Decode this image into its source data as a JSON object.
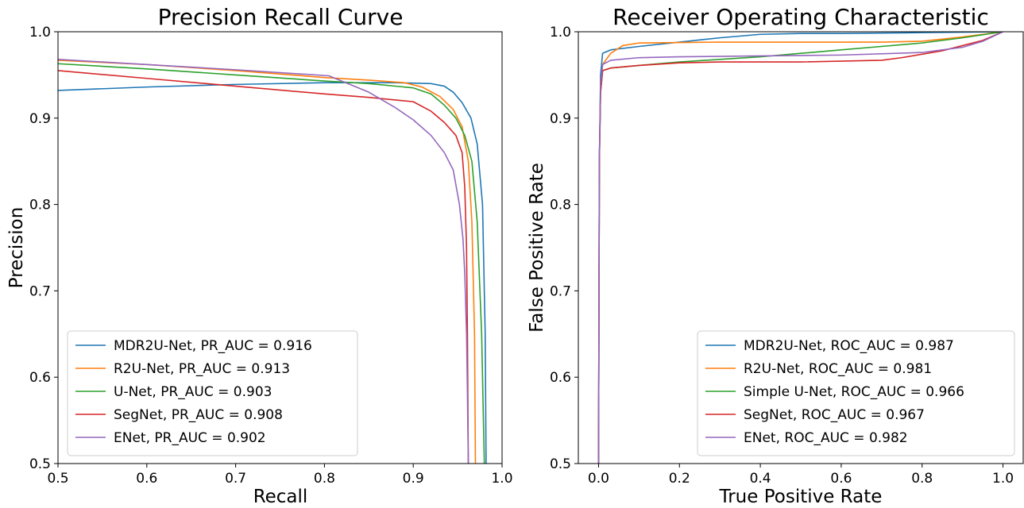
{
  "chart_data": [
    {
      "type": "line",
      "title": "Precision Recall Curve",
      "xlabel": "Recall",
      "ylabel": "Precision",
      "xlim": [
        0.5,
        1.0
      ],
      "ylim": [
        0.5,
        1.0
      ],
      "xticks": [
        "0.5",
        "0.6",
        "0.7",
        "0.8",
        "0.9",
        "1.0"
      ],
      "yticks": [
        "0.5",
        "0.6",
        "0.7",
        "0.8",
        "0.9",
        "1.0"
      ],
      "grid": false,
      "legend_position": "lower-left",
      "series": [
        {
          "name": "MDR2U-Net, PR_AUC = 0.916",
          "color": "#1f77b4",
          "x": [
            0.5,
            0.6,
            0.7,
            0.8,
            0.88,
            0.92,
            0.935,
            0.945,
            0.955,
            0.965,
            0.972,
            0.978,
            0.981,
            0.982
          ],
          "y": [
            0.932,
            0.936,
            0.939,
            0.941,
            0.941,
            0.94,
            0.937,
            0.93,
            0.918,
            0.9,
            0.87,
            0.8,
            0.65,
            0.5
          ]
        },
        {
          "name": "R2U-Net, PR_AUC = 0.913",
          "color": "#ff7f0e",
          "x": [
            0.5,
            0.6,
            0.7,
            0.8,
            0.85,
            0.89,
            0.91,
            0.93,
            0.945,
            0.955,
            0.962,
            0.966,
            0.969,
            0.97
          ],
          "y": [
            0.967,
            0.962,
            0.955,
            0.947,
            0.944,
            0.941,
            0.936,
            0.925,
            0.91,
            0.89,
            0.85,
            0.78,
            0.65,
            0.5
          ]
        },
        {
          "name": "U-Net, PR_AUC = 0.903",
          "color": "#2ca02c",
          "x": [
            0.5,
            0.6,
            0.7,
            0.8,
            0.85,
            0.9,
            0.92,
            0.935,
            0.948,
            0.958,
            0.966,
            0.972,
            0.977,
            0.98
          ],
          "y": [
            0.963,
            0.957,
            0.95,
            0.943,
            0.94,
            0.935,
            0.928,
            0.915,
            0.9,
            0.88,
            0.85,
            0.78,
            0.65,
            0.5
          ]
        },
        {
          "name": "SegNet, PR_AUC = 0.908",
          "color": "#d62728",
          "x": [
            0.5,
            0.6,
            0.7,
            0.8,
            0.85,
            0.9,
            0.92,
            0.935,
            0.948,
            0.955,
            0.958,
            0.96,
            0.961,
            0.962
          ],
          "y": [
            0.955,
            0.946,
            0.937,
            0.928,
            0.924,
            0.919,
            0.908,
            0.895,
            0.88,
            0.86,
            0.82,
            0.75,
            0.65,
            0.5
          ]
        },
        {
          "name": "ENet, PR_AUC = 0.902",
          "color": "#9467bd",
          "x": [
            0.5,
            0.6,
            0.7,
            0.805,
            0.85,
            0.88,
            0.9,
            0.92,
            0.935,
            0.945,
            0.952,
            0.956,
            0.958,
            0.96,
            0.961,
            0.962
          ],
          "y": [
            0.968,
            0.962,
            0.956,
            0.949,
            0.93,
            0.912,
            0.898,
            0.88,
            0.86,
            0.84,
            0.8,
            0.76,
            0.72,
            0.65,
            0.58,
            0.5
          ]
        }
      ]
    },
    {
      "type": "line",
      "title": "Receiver Operating Characteristic",
      "xlabel": "True Positive Rate",
      "ylabel": "False Positive Rate",
      "xlim": [
        -0.05,
        1.05
      ],
      "ylim": [
        0.5,
        1.0
      ],
      "xticks": [
        "0.0",
        "0.2",
        "0.4",
        "0.6",
        "0.8",
        "1.0"
      ],
      "yticks": [
        "0.5",
        "0.6",
        "0.7",
        "0.8",
        "0.9",
        "1.0"
      ],
      "grid": false,
      "legend_position": "lower-right",
      "series": [
        {
          "name": "MDR2U-Net, ROC_AUC = 0.987",
          "color": "#1f77b4",
          "x": [
            0.0,
            0.002,
            0.005,
            0.01,
            0.03,
            0.1,
            0.2,
            0.3,
            0.4,
            0.5,
            0.6,
            0.8,
            1.0
          ],
          "y": [
            0.5,
            0.85,
            0.95,
            0.975,
            0.979,
            0.983,
            0.988,
            0.993,
            0.997,
            0.998,
            0.998,
            0.999,
            1.0
          ]
        },
        {
          "name": "R2U-Net, ROC_AUC = 0.981",
          "color": "#ff7f0e",
          "x": [
            0.0,
            0.002,
            0.005,
            0.01,
            0.03,
            0.06,
            0.1,
            0.3,
            0.5,
            0.7,
            0.8,
            0.9,
            1.0
          ],
          "y": [
            0.5,
            0.85,
            0.93,
            0.962,
            0.975,
            0.984,
            0.987,
            0.988,
            0.988,
            0.988,
            0.989,
            0.994,
            1.0
          ]
        },
        {
          "name": "Simple U-Net, ROC_AUC = 0.966",
          "color": "#2ca02c",
          "x": [
            0.0,
            0.002,
            0.005,
            0.01,
            0.03,
            0.1,
            0.2,
            0.3,
            0.4,
            0.5,
            0.6,
            0.7,
            0.8,
            0.9,
            1.0
          ],
          "y": [
            0.5,
            0.85,
            0.93,
            0.955,
            0.958,
            0.961,
            0.965,
            0.968,
            0.971,
            0.975,
            0.979,
            0.983,
            0.987,
            0.993,
            1.0
          ]
        },
        {
          "name": "SegNet, ROC_AUC = 0.967",
          "color": "#d62728",
          "x": [
            0.0,
            0.002,
            0.005,
            0.01,
            0.03,
            0.1,
            0.2,
            0.3,
            0.5,
            0.7,
            0.75,
            0.85,
            0.95,
            1.0
          ],
          "y": [
            0.5,
            0.85,
            0.93,
            0.955,
            0.958,
            0.961,
            0.964,
            0.965,
            0.965,
            0.967,
            0.97,
            0.978,
            0.99,
            1.0
          ]
        },
        {
          "name": "ENet, ROC_AUC = 0.982",
          "color": "#9467bd",
          "x": [
            0.0,
            0.002,
            0.005,
            0.01,
            0.03,
            0.1,
            0.2,
            0.4,
            0.6,
            0.8,
            0.9,
            0.95,
            1.0
          ],
          "y": [
            0.5,
            0.85,
            0.94,
            0.962,
            0.967,
            0.97,
            0.971,
            0.972,
            0.973,
            0.976,
            0.982,
            0.989,
            1.0
          ]
        }
      ]
    }
  ]
}
